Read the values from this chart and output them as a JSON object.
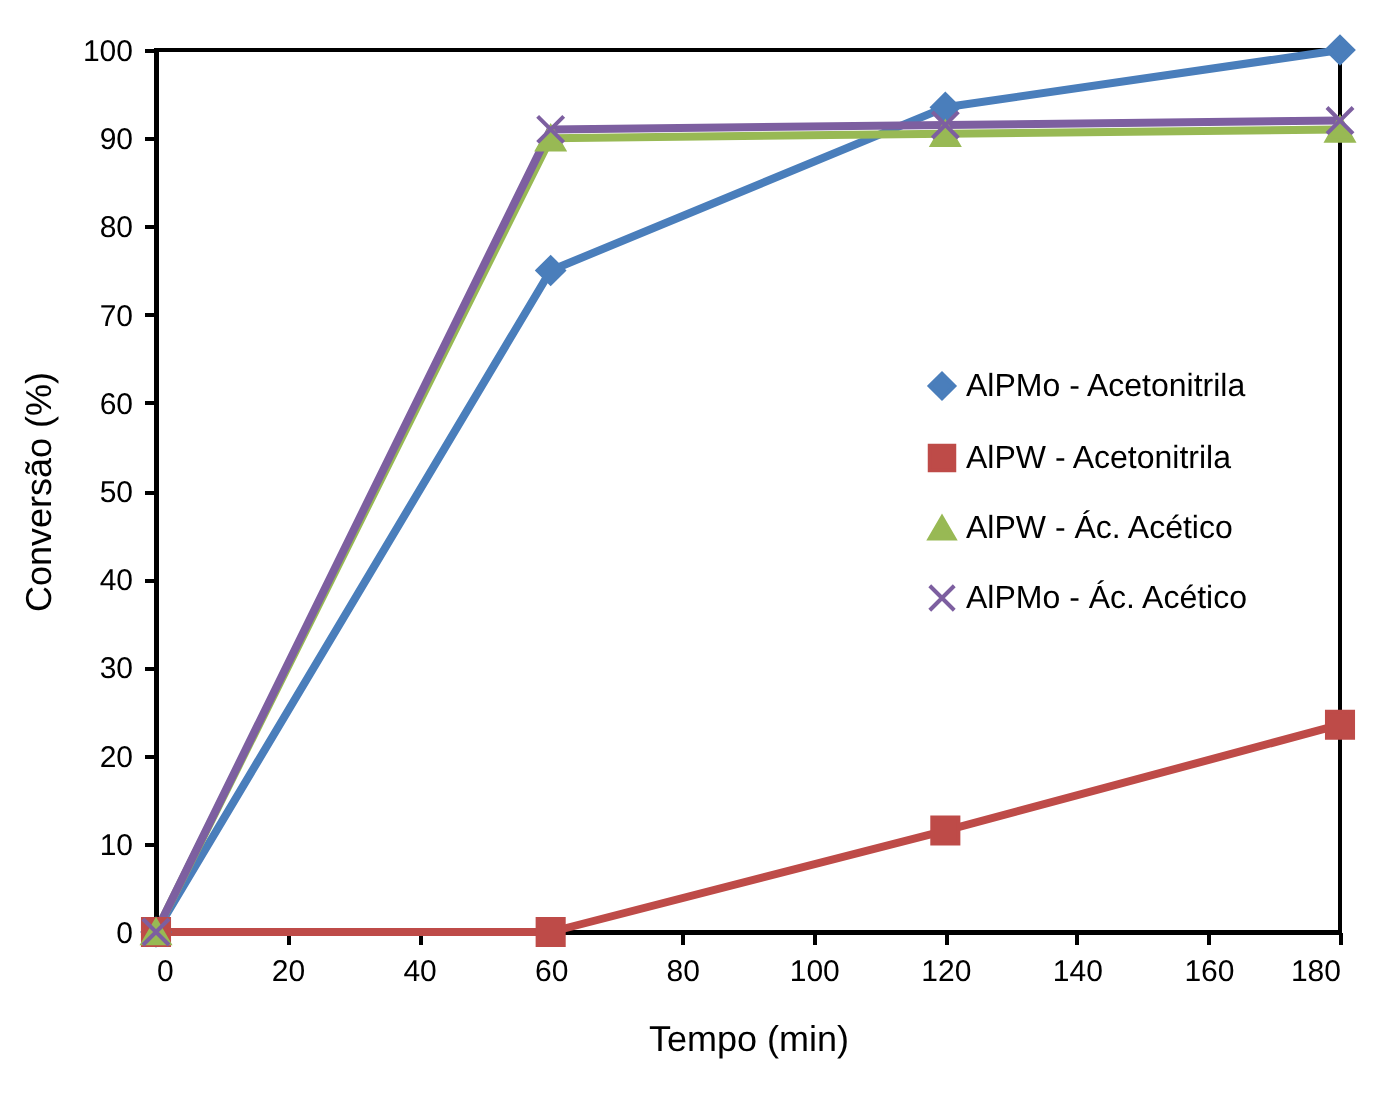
{
  "chart_data": {
    "type": "line",
    "xlabel": "Tempo (min)",
    "ylabel": "Conversão (%)",
    "x": [
      0,
      60,
      120,
      180
    ],
    "xlim": [
      0,
      180
    ],
    "xticks": [
      0,
      20,
      40,
      60,
      80,
      100,
      120,
      140,
      160,
      180
    ],
    "ylim": [
      0,
      100
    ],
    "yticks": [
      0,
      10,
      20,
      30,
      40,
      50,
      60,
      70,
      80,
      90,
      100
    ],
    "grid": false,
    "legend": "right",
    "line_style": "solid",
    "series": [
      {
        "name": "AlPMo - Acetonitrila",
        "color": "#4a7ebb",
        "marker": "diamond",
        "values": [
          0,
          75,
          93.5,
          100
        ]
      },
      {
        "name": "AlPW - Acetonitrila",
        "color": "#be4b48",
        "marker": "square",
        "values": [
          0,
          0,
          11.5,
          23.5
        ]
      },
      {
        "name": "AlPW - Ác. Acético",
        "color": "#98b954",
        "marker": "triangle",
        "values": [
          0,
          90,
          90.5,
          91
        ]
      },
      {
        "name": "AlPMo - Ác. Acético",
        "color": "#7d5fa0",
        "marker": "cross",
        "values": [
          0,
          91,
          91.5,
          92
        ]
      }
    ]
  }
}
